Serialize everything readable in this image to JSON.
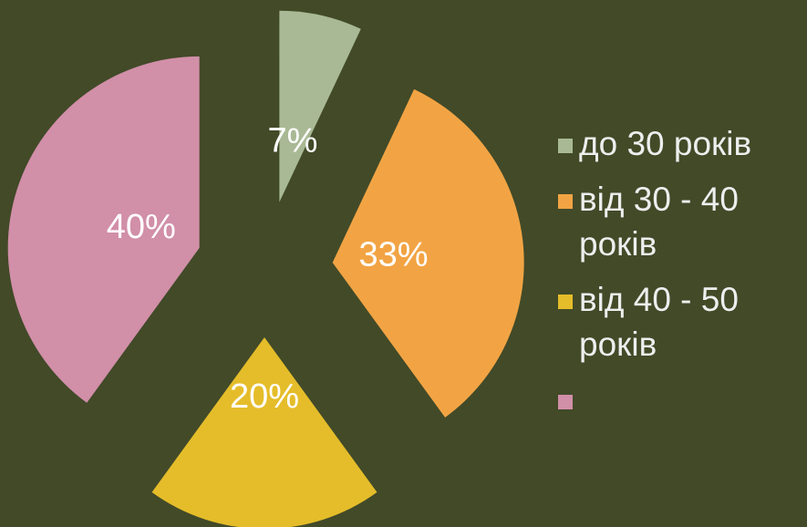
{
  "chart_data": {
    "type": "pie",
    "categories": [
      "до 30 років",
      "від 30 - 40 років",
      "від 40 - 50 років",
      null
    ],
    "values": [
      7,
      33,
      20,
      40
    ],
    "value_labels": [
      "7%",
      "33%",
      "20%",
      "40%"
    ],
    "colors": [
      "#a9b995",
      "#f2a444",
      "#e5bd2a",
      "#d18fa8"
    ],
    "exploded": true,
    "legend": "right"
  }
}
